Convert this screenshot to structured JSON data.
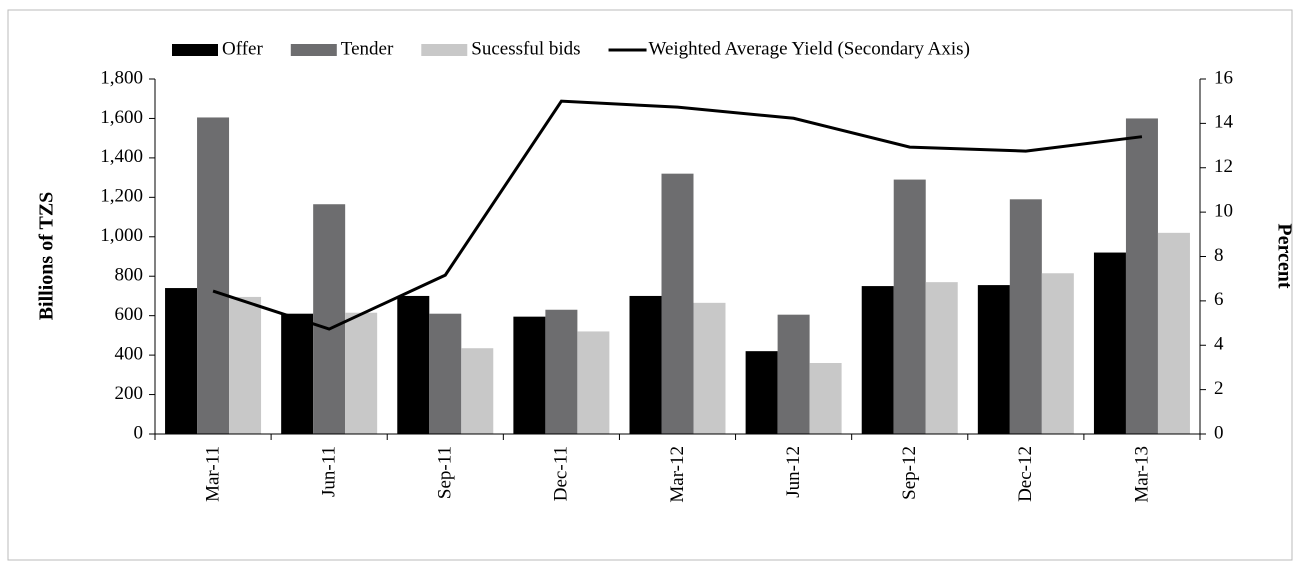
{
  "chart_data": {
    "type": "bar",
    "categories": [
      "Mar-11",
      "Jun-11",
      "Sep-11",
      "Dec-11",
      "Mar-12",
      "Jun-12",
      "Sep-12",
      "Dec-12",
      "Mar-13"
    ],
    "series": [
      {
        "name": "Offer",
        "color": "#000000",
        "values": [
          740,
          610,
          700,
          595,
          700,
          420,
          750,
          755,
          920
        ]
      },
      {
        "name": "Tender",
        "color": "#6d6d6f",
        "values": [
          1605,
          1165,
          610,
          630,
          1320,
          605,
          1290,
          1190,
          1600
        ]
      },
      {
        "name": "Sucessful bids",
        "color": "#c8c8c8",
        "values": [
          695,
          615,
          435,
          520,
          665,
          360,
          770,
          815,
          1020
        ]
      },
      {
        "name": "Weighted Average Yield (Secondary Axis)",
        "color": "#000000",
        "type": "line",
        "axis": "y2",
        "values": [
          6.44,
          4.73,
          7.16,
          15.0,
          14.73,
          14.23,
          12.93,
          12.75,
          13.4
        ]
      }
    ],
    "y_label": "Billions of TZS",
    "y2_label": "Percent",
    "ylim": [
      0,
      1800
    ],
    "yticks": [
      0,
      200,
      400,
      600,
      800,
      {
        "value": 1000,
        "label": "1,000"
      },
      {
        "value": 1200,
        "label": "1,200"
      },
      {
        "value": 1400,
        "label": "1,400"
      },
      {
        "value": 1600,
        "label": "1,600"
      },
      {
        "value": 1800,
        "label": "1,800"
      }
    ],
    "y2lim": [
      0,
      16
    ],
    "y2ticks": [
      0,
      2,
      4,
      6,
      8,
      10,
      12,
      14,
      16
    ],
    "legend": "top"
  }
}
